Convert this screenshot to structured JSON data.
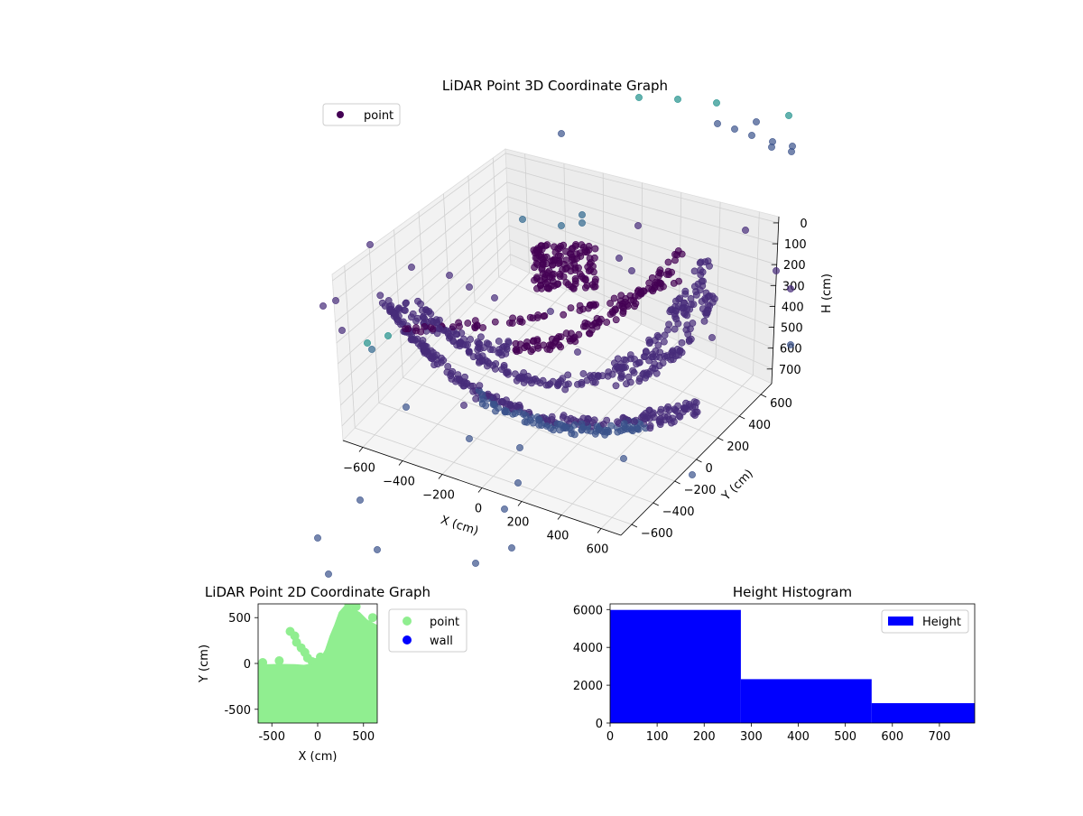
{
  "colors": {
    "point3d_dark": "#440154",
    "point3d_mid": "#3b528b",
    "point3d_teal": "#21918c",
    "pane": "#f2f2f2",
    "grid": "#d0d0d0",
    "point2d": "#90ee90",
    "wall2d": "#0000ff",
    "hist_bar": "#0000ff"
  },
  "chart_data": [
    {
      "type": "scatter",
      "projection": "3d",
      "title": "LiDAR Point 3D Coordinate Graph",
      "xlabel": "X (cm)",
      "ylabel": "Y (cm)",
      "zlabel": "H (cm)",
      "xticks": [
        "−600",
        "−400",
        "−200",
        "0",
        "200",
        "400",
        "600"
      ],
      "yticks": [
        "600",
        "400",
        "200",
        "0",
        "−200",
        "−400",
        "−600"
      ],
      "zticks": [
        "0",
        "100",
        "200",
        "300",
        "400",
        "500",
        "600",
        "700"
      ],
      "xlim": [
        -650,
        650
      ],
      "ylim": [
        -650,
        650
      ],
      "zlim": [
        0,
        750
      ],
      "grid": true,
      "legend": {
        "position": "top-left",
        "entries": [
          "point"
        ]
      },
      "color_by": "height"
    },
    {
      "type": "scatter",
      "title": "LiDAR Point 2D Coordinate Graph",
      "xlabel": "X (cm)",
      "ylabel": "Y (cm)",
      "xticks": [
        -500,
        0,
        500
      ],
      "yticks": [
        500,
        0,
        -500
      ],
      "xlim": [
        -650,
        650
      ],
      "ylim": [
        -650,
        650
      ],
      "legend": {
        "position": "outside-right",
        "entries": [
          "point",
          "wall"
        ]
      },
      "series": [
        {
          "name": "point",
          "color": "#90ee90"
        },
        {
          "name": "wall",
          "color": "#0000ff"
        }
      ]
    },
    {
      "type": "bar",
      "subtype": "histogram",
      "title": "Height Histogram",
      "xlabel": "",
      "ylabel": "",
      "bins": [
        [
          0,
          278
        ],
        [
          278,
          556
        ],
        [
          556,
          775
        ]
      ],
      "values": [
        5980,
        2320,
        1050
      ],
      "xticks": [
        0,
        100,
        200,
        300,
        400,
        500,
        600,
        700
      ],
      "yticks": [
        0,
        2000,
        4000,
        6000
      ],
      "xlim": [
        0,
        775
      ],
      "ylim": [
        0,
        6300
      ],
      "legend": {
        "position": "top-right",
        "entries": [
          "Height"
        ]
      },
      "series": [
        {
          "name": "Height",
          "color": "#0000ff"
        }
      ]
    }
  ]
}
